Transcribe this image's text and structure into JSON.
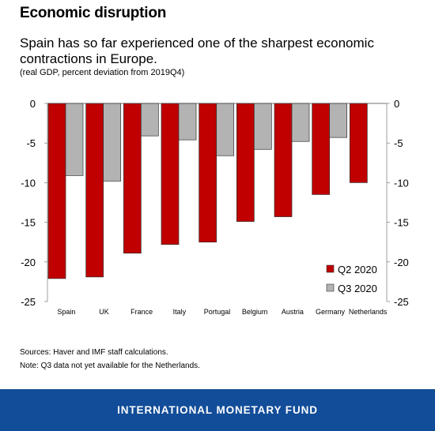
{
  "header": {
    "title": "Economic disruption",
    "subtitle": "Spain has so far experienced one of the sharpest economic contractions in Europe.",
    "unit": "(real GDP, percent deviation from 2019Q4)"
  },
  "notes": {
    "sources": "Sources: Haver and IMF staff calculations.",
    "note": "Note: Q3 data not yet available for the Netherlands."
  },
  "footer": {
    "org": "INTERNATIONAL MONETARY FUND"
  },
  "chart_data": {
    "type": "bar",
    "categories": [
      "Spain",
      "UK",
      "France",
      "Italy",
      "Portugal",
      "Belgium",
      "Austria",
      "Germany",
      "Netherlands"
    ],
    "series": [
      {
        "name": "Q2 2020",
        "values": [
          -22.1,
          -21.9,
          -18.9,
          -17.8,
          -17.5,
          -14.9,
          -14.3,
          -11.5,
          -10.0
        ],
        "color": "#c00000"
      },
      {
        "name": "Q3 2020",
        "values": [
          -9.1,
          -9.8,
          -4.1,
          -4.6,
          -6.6,
          -5.8,
          -4.8,
          -4.3,
          null
        ],
        "color": "#b3b3b3"
      }
    ],
    "ylim": [
      -25,
      0
    ],
    "yticks": [
      0,
      -5,
      -10,
      -15,
      -20,
      -25
    ],
    "ytick_labels": [
      "0",
      "-5",
      "-10",
      "-15",
      "-20",
      "-25"
    ],
    "legend_position": "bottom-right",
    "grid": false
  }
}
